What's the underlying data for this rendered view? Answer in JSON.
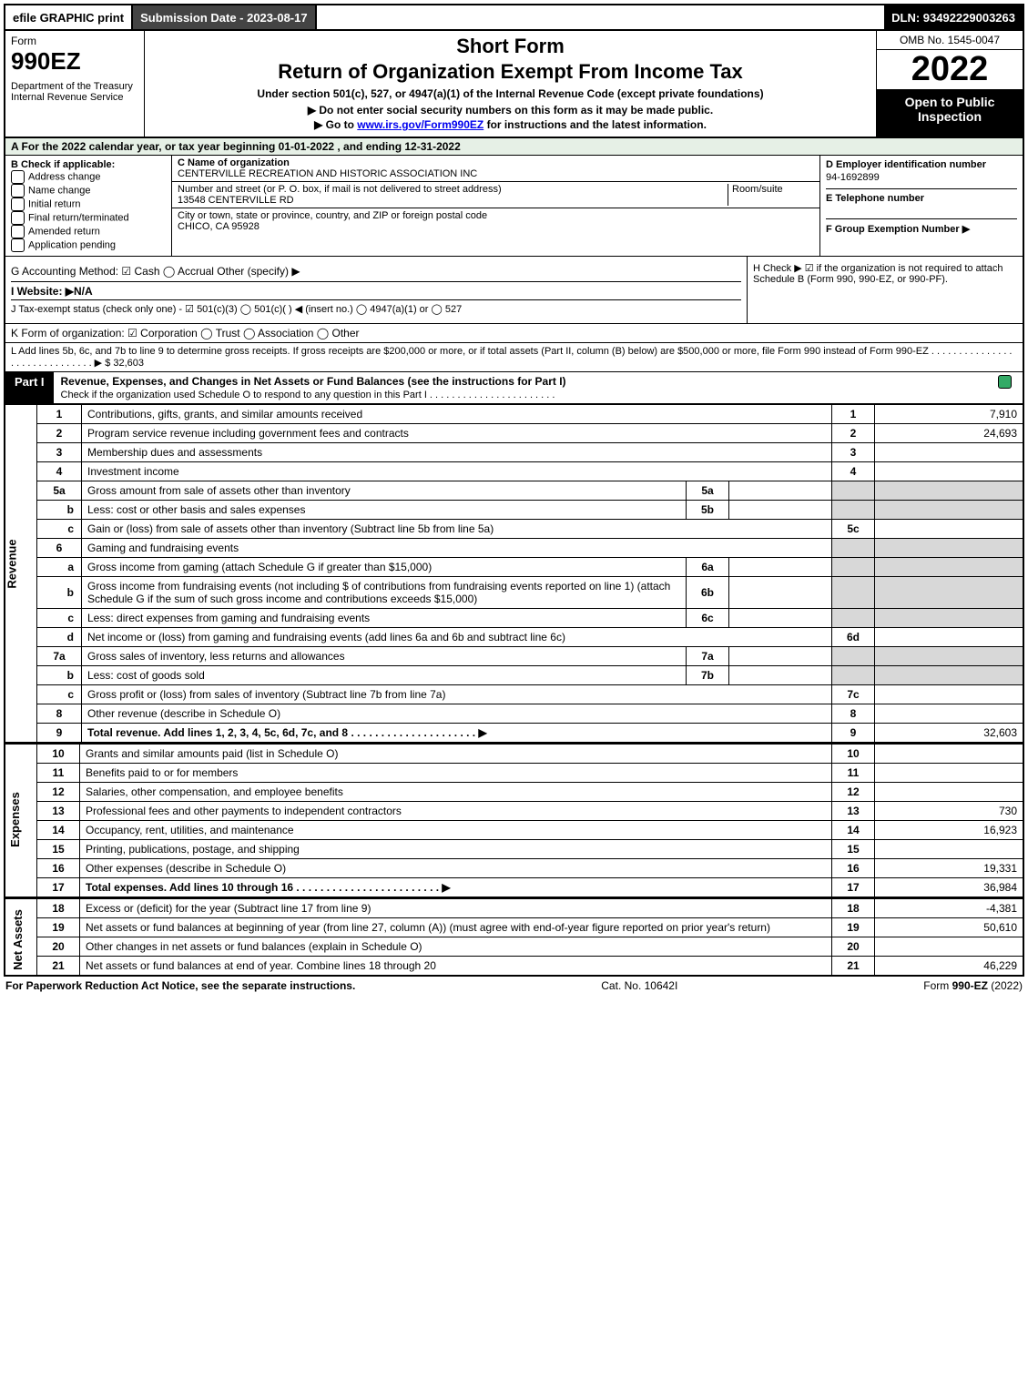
{
  "topbar": {
    "efile": "efile GRAPHIC print",
    "submission": "Submission Date - 2023-08-17",
    "dln": "DLN: 93492229003263"
  },
  "header": {
    "form_word": "Form",
    "form_num": "990EZ",
    "dept": "Department of the Treasury\nInternal Revenue Service",
    "short": "Short Form",
    "title": "Return of Organization Exempt From Income Tax",
    "under": "Under section 501(c), 527, or 4947(a)(1) of the Internal Revenue Code (except private foundations)",
    "note1": "▶ Do not enter social security numbers on this form as it may be made public.",
    "note2": "▶ Go to www.irs.gov/Form990EZ for instructions and the latest information.",
    "omb": "OMB No. 1545-0047",
    "year": "2022",
    "open": "Open to Public Inspection"
  },
  "a": "A  For the 2022 calendar year, or tax year beginning 01-01-2022 , and ending 12-31-2022",
  "b": {
    "label": "B  Check if applicable:",
    "items": [
      "Address change",
      "Name change",
      "Initial return",
      "Final return/terminated",
      "Amended return",
      "Application pending"
    ]
  },
  "c": {
    "name_lbl": "C Name of organization",
    "name": "CENTERVILLE RECREATION AND HISTORIC ASSOCIATION INC",
    "addr_lbl": "Number and street (or P. O. box, if mail is not delivered to street address)",
    "room_lbl": "Room/suite",
    "addr": "13548 CENTERVILLE RD",
    "city_lbl": "City or town, state or province, country, and ZIP or foreign postal code",
    "city": "CHICO, CA  95928"
  },
  "def": {
    "d_lbl": "D Employer identification number",
    "d_val": "94-1692899",
    "e_lbl": "E Telephone number",
    "f_lbl": "F Group Exemption Number  ▶"
  },
  "g": "G Accounting Method:   ☑ Cash   ◯ Accrual   Other (specify) ▶",
  "h": "H  Check ▶  ☑  if the organization is not required to attach Schedule B (Form 990, 990-EZ, or 990-PF).",
  "i": "I Website: ▶N/A",
  "j": "J Tax-exempt status (check only one) - ☑ 501(c)(3)  ◯ 501(c)(  ) ◀ (insert no.)  ◯ 4947(a)(1) or  ◯ 527",
  "k": "K Form of organization:  ☑ Corporation  ◯ Trust  ◯ Association  ◯ Other",
  "l": "L Add lines 5b, 6c, and 7b to line 9 to determine gross receipts. If gross receipts are $200,000 or more, or if total assets (Part II, column (B) below) are $500,000 or more, file Form 990 instead of Form 990-EZ . . . . . . . . . . . . . . . . . . . . . . . . . . . . . . ▶ $ 32,603",
  "part1": {
    "tab": "Part I",
    "title": "Revenue, Expenses, and Changes in Net Assets or Fund Balances (see the instructions for Part I)",
    "sub": "Check if the organization used Schedule O to respond to any question in this Part I . . . . . . . . . . . . . . . . . . . . . . ."
  },
  "sections": {
    "revenue": "Revenue",
    "expenses": "Expenses",
    "netassets": "Net Assets"
  },
  "rows": [
    {
      "n": "1",
      "d": "Contributions, gifts, grants, and similar amounts received",
      "r": "1",
      "a": "7,910"
    },
    {
      "n": "2",
      "d": "Program service revenue including government fees and contracts",
      "r": "2",
      "a": "24,693"
    },
    {
      "n": "3",
      "d": "Membership dues and assessments",
      "r": "3",
      "a": ""
    },
    {
      "n": "4",
      "d": "Investment income",
      "r": "4",
      "a": ""
    },
    {
      "n": "5a",
      "d": "Gross amount from sale of assets other than inventory",
      "m": "5a",
      "mv": "",
      "shade": true
    },
    {
      "n": "b",
      "d": "Less: cost or other basis and sales expenses",
      "m": "5b",
      "mv": "",
      "shade": true
    },
    {
      "n": "c",
      "d": "Gain or (loss) from sale of assets other than inventory (Subtract line 5b from line 5a)",
      "r": "5c",
      "a": ""
    },
    {
      "n": "6",
      "d": "Gaming and fundraising events",
      "header": true
    },
    {
      "n": "a",
      "d": "Gross income from gaming (attach Schedule G if greater than $15,000)",
      "m": "6a",
      "mv": "",
      "shade": true
    },
    {
      "n": "b",
      "d": "Gross income from fundraising events (not including $                of contributions from fundraising events reported on line 1) (attach Schedule G if the sum of such gross income and contributions exceeds $15,000)",
      "m": "6b",
      "mv": "",
      "shade": true
    },
    {
      "n": "c",
      "d": "Less: direct expenses from gaming and fundraising events",
      "m": "6c",
      "mv": "",
      "shade": true
    },
    {
      "n": "d",
      "d": "Net income or (loss) from gaming and fundraising events (add lines 6a and 6b and subtract line 6c)",
      "r": "6d",
      "a": ""
    },
    {
      "n": "7a",
      "d": "Gross sales of inventory, less returns and allowances",
      "m": "7a",
      "mv": "",
      "shade": true
    },
    {
      "n": "b",
      "d": "Less: cost of goods sold",
      "m": "7b",
      "mv": "",
      "shade": true
    },
    {
      "n": "c",
      "d": "Gross profit or (loss) from sales of inventory (Subtract line 7b from line 7a)",
      "r": "7c",
      "a": ""
    },
    {
      "n": "8",
      "d": "Other revenue (describe in Schedule O)",
      "r": "8",
      "a": ""
    },
    {
      "n": "9",
      "d": "Total revenue. Add lines 1, 2, 3, 4, 5c, 6d, 7c, and 8  . . . . . . . . . . . . . . . . . . . . . ▶",
      "r": "9",
      "a": "32,603",
      "bold": true
    }
  ],
  "exp_rows": [
    {
      "n": "10",
      "d": "Grants and similar amounts paid (list in Schedule O)",
      "r": "10",
      "a": ""
    },
    {
      "n": "11",
      "d": "Benefits paid to or for members",
      "r": "11",
      "a": ""
    },
    {
      "n": "12",
      "d": "Salaries, other compensation, and employee benefits",
      "r": "12",
      "a": ""
    },
    {
      "n": "13",
      "d": "Professional fees and other payments to independent contractors",
      "r": "13",
      "a": "730"
    },
    {
      "n": "14",
      "d": "Occupancy, rent, utilities, and maintenance",
      "r": "14",
      "a": "16,923"
    },
    {
      "n": "15",
      "d": "Printing, publications, postage, and shipping",
      "r": "15",
      "a": ""
    },
    {
      "n": "16",
      "d": "Other expenses (describe in Schedule O)",
      "r": "16",
      "a": "19,331"
    },
    {
      "n": "17",
      "d": "Total expenses. Add lines 10 through 16  . . . . . . . . . . . . . . . . . . . . . . . . ▶",
      "r": "17",
      "a": "36,984",
      "bold": true
    }
  ],
  "na_rows": [
    {
      "n": "18",
      "d": "Excess or (deficit) for the year (Subtract line 17 from line 9)",
      "r": "18",
      "a": "-4,381"
    },
    {
      "n": "19",
      "d": "Net assets or fund balances at beginning of year (from line 27, column (A)) (must agree with end-of-year figure reported on prior year's return)",
      "r": "19",
      "a": "50,610"
    },
    {
      "n": "20",
      "d": "Other changes in net assets or fund balances (explain in Schedule O)",
      "r": "20",
      "a": ""
    },
    {
      "n": "21",
      "d": "Net assets or fund balances at end of year. Combine lines 18 through 20",
      "r": "21",
      "a": "46,229"
    }
  ],
  "footer": {
    "left": "For Paperwork Reduction Act Notice, see the separate instructions.",
    "mid": "Cat. No. 10642I",
    "right": "Form 990-EZ (2022)"
  }
}
